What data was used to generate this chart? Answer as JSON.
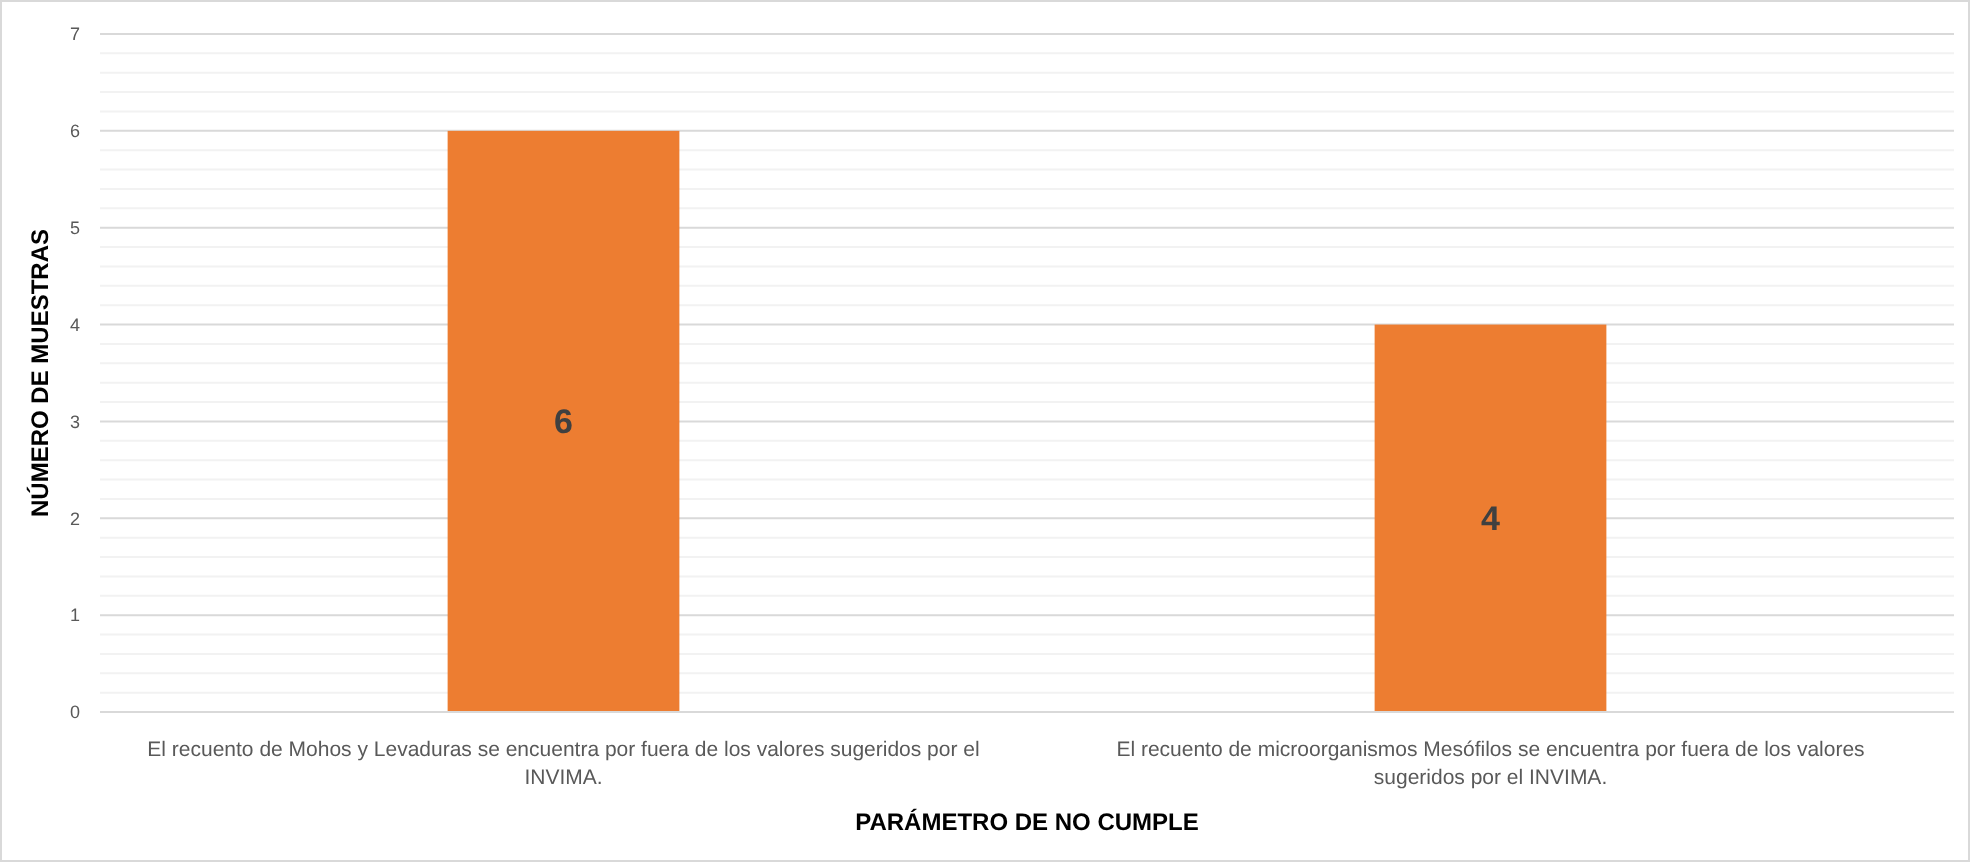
{
  "chart_data": {
    "type": "bar",
    "xlabel": "PARÁMETRO DE NO CUMPLE",
    "ylabel": "NÚMERO DE MUESTRAS",
    "categories": [
      "El recuento de Mohos y Levaduras se encuentra por fuera de los valores sugeridos por el INVIMA.",
      "El recuento de microorganismos Mesófilos se encuentra por fuera de los valores sugeridos por el INVIMA."
    ],
    "values": [
      6,
      4
    ],
    "color": "#ed7d31",
    "data_labels": true,
    "grid": "y",
    "ylim": [
      0,
      7
    ],
    "yticks": [
      0,
      {
        "value": 0.2,
        "label": null
      },
      {
        "value": 0.4,
        "label": null
      },
      {
        "value": 0.6,
        "label": null
      },
      {
        "value": 0.8,
        "label": null
      },
      1,
      {
        "value": 1.2,
        "label": null
      },
      {
        "value": 1.4,
        "label": null
      },
      {
        "value": 1.6,
        "label": null
      },
      {
        "value": 1.8,
        "label": null
      },
      2,
      {
        "value": 2.2,
        "label": null
      },
      {
        "value": 2.4,
        "label": null
      },
      {
        "value": 2.6,
        "label": null
      },
      {
        "value": 2.8,
        "label": null
      },
      3,
      {
        "value": 3.2,
        "label": null
      },
      {
        "value": 3.4,
        "label": null
      },
      {
        "value": 3.6,
        "label": null
      },
      {
        "value": 3.8,
        "label": null
      },
      4,
      {
        "value": 4.2,
        "label": null
      },
      {
        "value": 4.4,
        "label": null
      },
      {
        "value": 4.6,
        "label": null
      },
      {
        "value": 4.8,
        "label": null
      },
      5,
      {
        "value": 5.2,
        "label": null
      },
      {
        "value": 5.4,
        "label": null
      },
      {
        "value": 5.6,
        "label": null
      },
      {
        "value": 5.8,
        "label": null
      },
      6,
      {
        "value": 6.2,
        "label": null
      },
      {
        "value": 6.4,
        "label": null
      },
      {
        "value": 6.6,
        "label": null
      },
      {
        "value": 6.8,
        "label": null
      },
      7
    ]
  }
}
